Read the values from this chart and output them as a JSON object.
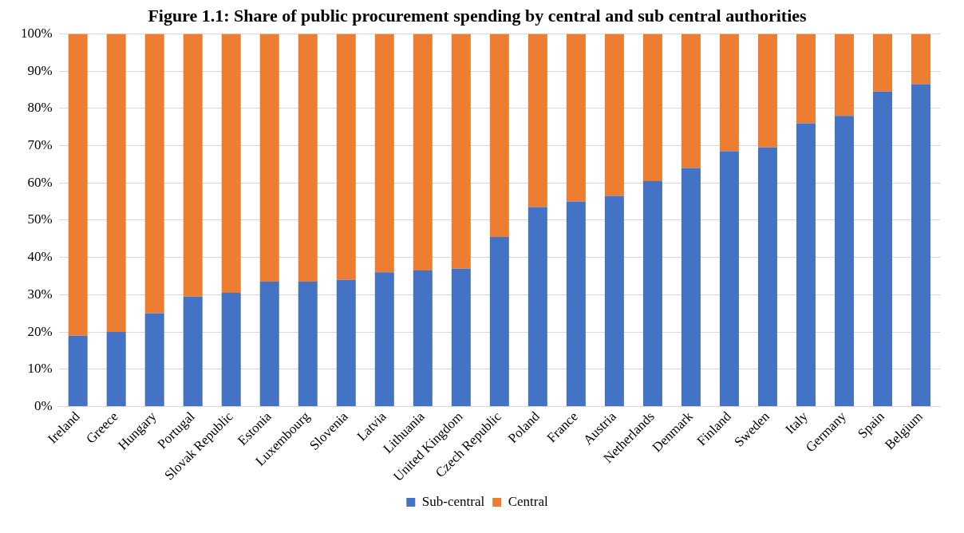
{
  "chart_data": {
    "type": "bar",
    "title": "Figure 1.1: Share of public procurement spending by central and sub central authorities",
    "stacked": true,
    "categories": [
      "Ireland",
      "Greece",
      "Hungary",
      "Portugal",
      "Slovak Republic",
      "Estonia",
      "Luxembourg",
      "Slovenia",
      "Latvia",
      "Lithuania",
      "United Kingdom",
      "Czech Republic",
      "Poland",
      "France",
      "Austria",
      "Netherlands",
      "Denmark",
      "Finland",
      "Sweden",
      "Italy",
      "Germany",
      "Spain",
      "Belgium"
    ],
    "series": [
      {
        "name": "Sub-central",
        "color": "#4472c4",
        "values": [
          19,
          20,
          25,
          29.5,
          30.5,
          33.5,
          33.5,
          34,
          36,
          36.5,
          37,
          45.5,
          53.5,
          55,
          56.5,
          60.5,
          64,
          68.5,
          69.5,
          76,
          78,
          84.5,
          86.5
        ]
      },
      {
        "name": "Central",
        "color": "#ed7d31",
        "values": [
          81,
          80,
          75,
          70.5,
          69.5,
          66.5,
          66.5,
          66,
          64,
          63.5,
          63,
          54.5,
          46.5,
          45,
          43.5,
          39.5,
          36,
          31.5,
          30.5,
          24,
          22,
          15.5,
          13.5
        ]
      }
    ],
    "ylim": [
      0,
      100
    ],
    "yticks": [
      {
        "value": 0,
        "label": "0%"
      },
      {
        "value": 10,
        "label": "10%"
      },
      {
        "value": 20,
        "label": "20%"
      },
      {
        "value": 30,
        "label": "30%"
      },
      {
        "value": 40,
        "label": "40%"
      },
      {
        "value": 50,
        "label": "50%"
      },
      {
        "value": 60,
        "label": "60%"
      },
      {
        "value": 70,
        "label": "70%"
      },
      {
        "value": 80,
        "label": "80%"
      },
      {
        "value": 90,
        "label": "90%"
      },
      {
        "value": 100,
        "label": "100%"
      }
    ],
    "grid": "y",
    "legend": "bottom"
  }
}
